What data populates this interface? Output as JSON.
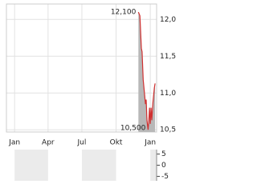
{
  "chart_data": [
    {
      "type": "line",
      "x": [
        333,
        337,
        341,
        343,
        346,
        350,
        352,
        354,
        356,
        359,
        361,
        363,
        365,
        367,
        369,
        372,
        376,
        378
      ],
      "series": [
        {
          "color": "#d03030",
          "values": [
            12.1,
            12.05,
            11.61,
            11.56,
            11.18,
            10.96,
            10.85,
            10.91,
            10.63,
            10.5,
            10.63,
            10.8,
            10.58,
            10.8,
            10.63,
            10.87,
            11.07,
            11.13
          ]
        }
      ],
      "annotations": [
        "12,100",
        "10,500"
      ],
      "xlim": [
        -22,
        382
      ],
      "xticks": [
        {
          "value": 0,
          "label": "Jan"
        },
        {
          "value": 90,
          "label": "Apr"
        },
        {
          "value": 181,
          "label": "Jul"
        },
        {
          "value": 273,
          "label": "Okt"
        },
        {
          "value": 365,
          "label": "Jan"
        }
      ],
      "ylim": [
        10.47,
        12.21
      ],
      "yticks": [
        {
          "value": 12.0,
          "label": "12,0"
        },
        {
          "value": 11.5,
          "label": "11,5"
        },
        {
          "value": 11.0,
          "label": "11,0"
        },
        {
          "value": 10.5,
          "label": "10,5"
        }
      ],
      "grid": true
    },
    {
      "type": "bar",
      "ylim": [
        -7,
        7
      ],
      "yticks": [
        5,
        0,
        -5
      ]
    }
  ]
}
